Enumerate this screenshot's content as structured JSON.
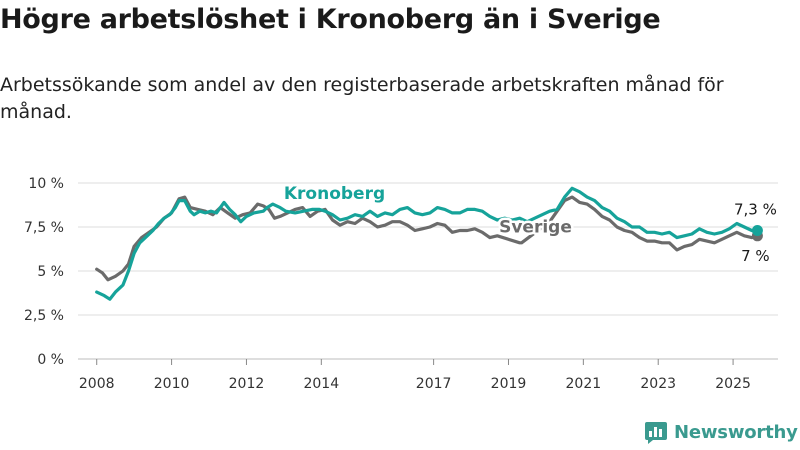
{
  "header": {
    "title": "Högre arbetslöshet i Kronoberg än i Sverige",
    "subtitle": "Arbetssökande som andel av den registerbaserade arbetskraften månad för månad."
  },
  "brand": {
    "name": "Newsworthy",
    "icon": "bar-chart-logo-icon",
    "color": "#3a9a8f"
  },
  "chart_data": {
    "type": "line",
    "title": "Högre arbetslöshet i Kronoberg än i Sverige",
    "subtitle": "Arbetssökande som andel av den registerbaserade arbetskraften månad för månad.",
    "xlabel": "",
    "ylabel": "",
    "ylim": [
      0,
      10
    ],
    "xlim": [
      2007.5,
      2026.2
    ],
    "grid": true,
    "yticks": [
      {
        "value": 0,
        "label": "0 %"
      },
      {
        "value": 2.5,
        "label": "2,5 %"
      },
      {
        "value": 5,
        "label": "5 %"
      },
      {
        "value": 7.5,
        "label": "7,5 %"
      },
      {
        "value": 10,
        "label": "10 %"
      }
    ],
    "xticks": [
      {
        "value": 2008,
        "label": "2008"
      },
      {
        "value": 2010,
        "label": "2010"
      },
      {
        "value": 2012,
        "label": "2012"
      },
      {
        "value": 2014,
        "label": "2014"
      },
      {
        "value": 2017,
        "label": "2017"
      },
      {
        "value": 2019,
        "label": "2019"
      },
      {
        "value": 2021,
        "label": "2021"
      },
      {
        "value": 2023,
        "label": "2023"
      },
      {
        "value": 2025,
        "label": "2025"
      }
    ],
    "series": [
      {
        "name": "Kronoberg",
        "color": "#16a39a",
        "end_label": "7,3 %",
        "points": [
          [
            2008.0,
            3.8
          ],
          [
            2008.2,
            3.6
          ],
          [
            2008.35,
            3.4
          ],
          [
            2008.5,
            3.8
          ],
          [
            2008.7,
            4.2
          ],
          [
            2008.85,
            5.0
          ],
          [
            2009.0,
            6.0
          ],
          [
            2009.15,
            6.6
          ],
          [
            2009.35,
            7.0
          ],
          [
            2009.5,
            7.3
          ],
          [
            2009.65,
            7.7
          ],
          [
            2009.8,
            8.0
          ],
          [
            2009.95,
            8.2
          ],
          [
            2010.1,
            8.6
          ],
          [
            2010.2,
            9.0
          ],
          [
            2010.35,
            9.0
          ],
          [
            2010.5,
            8.4
          ],
          [
            2010.6,
            8.2
          ],
          [
            2010.75,
            8.4
          ],
          [
            2010.9,
            8.3
          ],
          [
            2011.05,
            8.4
          ],
          [
            2011.2,
            8.3
          ],
          [
            2011.4,
            8.9
          ],
          [
            2011.55,
            8.5
          ],
          [
            2011.7,
            8.2
          ],
          [
            2011.85,
            7.8
          ],
          [
            2012.0,
            8.1
          ],
          [
            2012.2,
            8.3
          ],
          [
            2012.45,
            8.4
          ],
          [
            2012.55,
            8.6
          ],
          [
            2012.7,
            8.8
          ],
          [
            2012.9,
            8.6
          ],
          [
            2013.05,
            8.4
          ],
          [
            2013.3,
            8.3
          ],
          [
            2013.75,
            8.5
          ],
          [
            2013.95,
            8.5
          ],
          [
            2014.1,
            8.4
          ],
          [
            2014.3,
            8.2
          ],
          [
            2014.5,
            7.9
          ],
          [
            2014.7,
            8.0
          ],
          [
            2014.9,
            8.2
          ],
          [
            2015.1,
            8.1
          ],
          [
            2015.3,
            8.4
          ],
          [
            2015.5,
            8.1
          ],
          [
            2015.7,
            8.3
          ],
          [
            2015.9,
            8.2
          ],
          [
            2016.1,
            8.5
          ],
          [
            2016.3,
            8.6
          ],
          [
            2016.5,
            8.3
          ],
          [
            2016.7,
            8.2
          ],
          [
            2016.9,
            8.3
          ],
          [
            2017.1,
            8.6
          ],
          [
            2017.3,
            8.5
          ],
          [
            2017.5,
            8.3
          ],
          [
            2017.7,
            8.3
          ],
          [
            2017.9,
            8.5
          ],
          [
            2018.1,
            8.5
          ],
          [
            2018.3,
            8.4
          ],
          [
            2018.5,
            8.1
          ],
          [
            2018.7,
            7.9
          ],
          [
            2018.9,
            8.0
          ],
          [
            2019.1,
            7.9
          ],
          [
            2019.3,
            8.0
          ],
          [
            2019.5,
            7.8
          ],
          [
            2019.7,
            8.0
          ],
          [
            2019.9,
            8.2
          ],
          [
            2020.1,
            8.4
          ],
          [
            2020.3,
            8.5
          ],
          [
            2020.5,
            9.2
          ],
          [
            2020.7,
            9.7
          ],
          [
            2020.9,
            9.5
          ],
          [
            2021.1,
            9.2
          ],
          [
            2021.3,
            9.0
          ],
          [
            2021.5,
            8.6
          ],
          [
            2021.7,
            8.4
          ],
          [
            2021.9,
            8.0
          ],
          [
            2022.1,
            7.8
          ],
          [
            2022.3,
            7.5
          ],
          [
            2022.5,
            7.5
          ],
          [
            2022.7,
            7.2
          ],
          [
            2022.9,
            7.2
          ],
          [
            2023.1,
            7.1
          ],
          [
            2023.3,
            7.2
          ],
          [
            2023.5,
            6.9
          ],
          [
            2023.7,
            7.0
          ],
          [
            2023.9,
            7.1
          ],
          [
            2024.1,
            7.4
          ],
          [
            2024.3,
            7.2
          ],
          [
            2024.5,
            7.1
          ],
          [
            2024.7,
            7.2
          ],
          [
            2024.9,
            7.4
          ],
          [
            2025.1,
            7.7
          ],
          [
            2025.3,
            7.5
          ],
          [
            2025.5,
            7.3
          ],
          [
            2025.65,
            7.3
          ]
        ]
      },
      {
        "name": "Sverige",
        "color": "#6b6b6b",
        "end_label": "7 %",
        "points": [
          [
            2008.0,
            5.1
          ],
          [
            2008.15,
            4.9
          ],
          [
            2008.3,
            4.5
          ],
          [
            2008.5,
            4.7
          ],
          [
            2008.7,
            5.0
          ],
          [
            2008.85,
            5.4
          ],
          [
            2009.0,
            6.4
          ],
          [
            2009.2,
            6.9
          ],
          [
            2009.4,
            7.2
          ],
          [
            2009.6,
            7.5
          ],
          [
            2009.8,
            8.0
          ],
          [
            2010.0,
            8.3
          ],
          [
            2010.2,
            9.1
          ],
          [
            2010.35,
            9.2
          ],
          [
            2010.5,
            8.6
          ],
          [
            2010.7,
            8.5
          ],
          [
            2010.9,
            8.4
          ],
          [
            2011.1,
            8.2
          ],
          [
            2011.3,
            8.6
          ],
          [
            2011.5,
            8.3
          ],
          [
            2011.7,
            8.0
          ],
          [
            2011.9,
            8.2
          ],
          [
            2012.1,
            8.3
          ],
          [
            2012.3,
            8.8
          ],
          [
            2012.45,
            8.7
          ],
          [
            2012.6,
            8.5
          ],
          [
            2012.75,
            8.0
          ],
          [
            2012.9,
            8.1
          ],
          [
            2013.1,
            8.3
          ],
          [
            2013.3,
            8.5
          ],
          [
            2013.5,
            8.6
          ],
          [
            2013.7,
            8.1
          ],
          [
            2013.9,
            8.4
          ],
          [
            2014.1,
            8.5
          ],
          [
            2014.3,
            7.9
          ],
          [
            2014.5,
            7.6
          ],
          [
            2014.7,
            7.8
          ],
          [
            2014.9,
            7.7
          ],
          [
            2015.1,
            8.0
          ],
          [
            2015.3,
            7.8
          ],
          [
            2015.5,
            7.5
          ],
          [
            2015.7,
            7.6
          ],
          [
            2015.9,
            7.8
          ],
          [
            2016.1,
            7.8
          ],
          [
            2016.3,
            7.6
          ],
          [
            2016.5,
            7.3
          ],
          [
            2016.7,
            7.4
          ],
          [
            2016.9,
            7.5
          ],
          [
            2017.1,
            7.7
          ],
          [
            2017.3,
            7.6
          ],
          [
            2017.5,
            7.2
          ],
          [
            2017.7,
            7.3
          ],
          [
            2017.9,
            7.3
          ],
          [
            2018.1,
            7.4
          ],
          [
            2018.3,
            7.2
          ],
          [
            2018.5,
            6.9
          ],
          [
            2018.7,
            7.0
          ],
          [
            2019.3,
            6.6
          ],
          [
            2019.35,
            6.6
          ],
          [
            2020.1,
            7.8
          ],
          [
            2020.3,
            8.4
          ],
          [
            2020.5,
            9.0
          ],
          [
            2020.7,
            9.2
          ],
          [
            2020.9,
            8.9
          ],
          [
            2021.1,
            8.8
          ],
          [
            2021.3,
            8.5
          ],
          [
            2021.5,
            8.1
          ],
          [
            2021.7,
            7.9
          ],
          [
            2021.9,
            7.5
          ],
          [
            2022.1,
            7.3
          ],
          [
            2022.3,
            7.2
          ],
          [
            2022.5,
            6.9
          ],
          [
            2022.7,
            6.7
          ],
          [
            2022.9,
            6.7
          ],
          [
            2023.1,
            6.6
          ],
          [
            2023.3,
            6.6
          ],
          [
            2023.5,
            6.2
          ],
          [
            2023.7,
            6.4
          ],
          [
            2023.9,
            6.5
          ],
          [
            2024.1,
            6.8
          ],
          [
            2024.3,
            6.7
          ],
          [
            2024.5,
            6.6
          ],
          [
            2024.7,
            6.8
          ],
          [
            2024.9,
            7.0
          ],
          [
            2025.1,
            7.2
          ],
          [
            2025.3,
            7.0
          ],
          [
            2025.5,
            6.9
          ],
          [
            2025.65,
            7.0
          ]
        ]
      }
    ],
    "annotations": [
      {
        "text": "Kronoberg",
        "series": "Kronoberg",
        "x": 2013.0,
        "y": 9.1
      },
      {
        "text": "Sverige",
        "series": "Sverige",
        "x": 2018.75,
        "y": 7.2
      }
    ]
  }
}
